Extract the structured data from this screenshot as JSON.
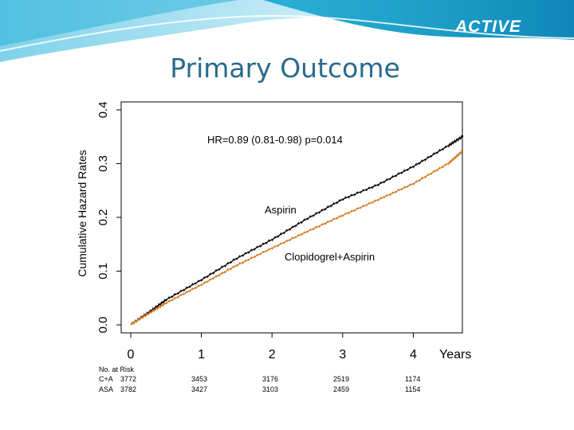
{
  "slide": {
    "brand": "ACTIVE",
    "title": "Primary Outcome",
    "colors": {
      "banner_dark": "#1a9fc7",
      "banner_light": "#bfe6f2",
      "title": "#2a6a8a"
    }
  },
  "chart_data": {
    "type": "line",
    "title": "",
    "xlabel": "Years",
    "ylabel": "Cumulative Hazard Rates",
    "xlim": [
      0,
      4.7
    ],
    "ylim": [
      0,
      0.4
    ],
    "x_ticks": [
      "0",
      "1",
      "2",
      "3",
      "4"
    ],
    "y_ticks": [
      "0.0",
      "0.1",
      "0.2",
      "0.3",
      "0.4"
    ],
    "annotation": "HR=0.89 (0.81-0.98) p=0.014",
    "grid": false,
    "series": [
      {
        "name": "Aspirin",
        "color": "#000000",
        "x": [
          0,
          0.25,
          0.5,
          1.0,
          1.5,
          2.0,
          2.5,
          3.0,
          3.5,
          4.0,
          4.5,
          4.7
        ],
        "y": [
          0,
          0.022,
          0.046,
          0.083,
          0.123,
          0.158,
          0.197,
          0.233,
          0.26,
          0.294,
          0.333,
          0.35
        ]
      },
      {
        "name": "Clopidogrel+Aspirin",
        "color": "#d4781f",
        "x": [
          0,
          0.25,
          0.5,
          1.0,
          1.5,
          2.0,
          2.5,
          3.0,
          3.5,
          4.0,
          4.5,
          4.7
        ],
        "y": [
          0,
          0.02,
          0.04,
          0.074,
          0.11,
          0.142,
          0.173,
          0.203,
          0.232,
          0.262,
          0.3,
          0.323
        ]
      }
    ],
    "at_risk": {
      "header": "No. at Risk",
      "rows": [
        {
          "label": "C+A",
          "values": [
            "3772",
            "3453",
            "3176",
            "2519",
            "1174"
          ]
        },
        {
          "label": "ASA",
          "values": [
            "3782",
            "3427",
            "3103",
            "2459",
            "1154"
          ]
        }
      ]
    }
  }
}
